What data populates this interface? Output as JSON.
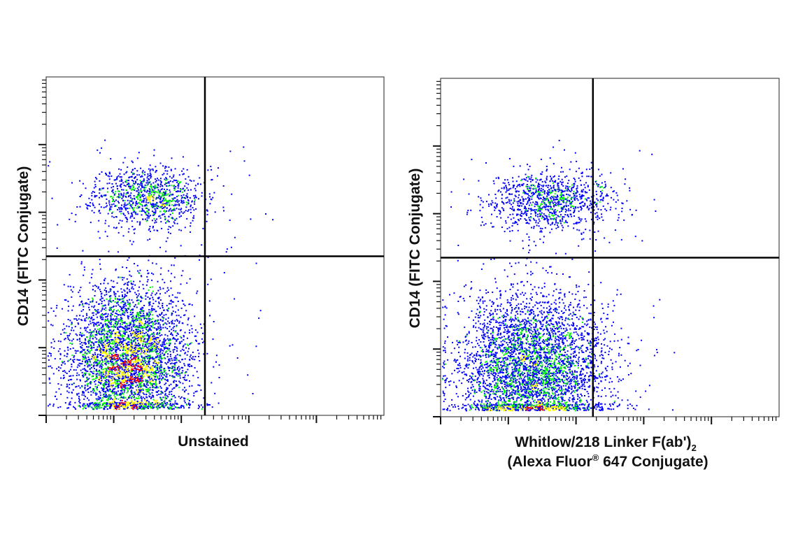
{
  "chart_data": [
    {
      "type": "scatter",
      "subtype": "flow-cytometry-density-dot-plot",
      "y_label": "CD14 (FITC Conjugate)",
      "x_label": "Unstained",
      "axes": {
        "x_scale": "log",
        "y_scale": "log",
        "x_decades": 5,
        "y_decades": 5,
        "tick_labels": "none",
        "grid": false
      },
      "quadrant_gates": {
        "x": 0.47,
        "y": 0.53
      },
      "density_colors": [
        "#0000ff",
        "#00ff00",
        "#ffff00",
        "#ff0000"
      ],
      "populations": [
        {
          "name": "CD14 high",
          "x_center": 1.5,
          "y_center": 3.25,
          "x_spread": 0.4,
          "y_spread": 0.22,
          "share": 0.2
        },
        {
          "name": "CD14 low",
          "x_center": 1.2,
          "y_center": 0.85,
          "x_spread": 0.45,
          "y_spread": 0.55,
          "share": 0.8
        }
      ]
    },
    {
      "type": "scatter",
      "subtype": "flow-cytometry-density-dot-plot",
      "y_label": "CD14 (FITC Conjugate)",
      "x_label_line1": "Whitlow/218 Linker F(ab')",
      "x_label_sub": "2",
      "x_label_line2_a": "(Alexa Fluor",
      "x_label_line2_sup": "®",
      "x_label_line2_b": " 647 Conjugate)",
      "axes": {
        "x_scale": "log",
        "y_scale": "log",
        "x_decades": 5,
        "y_decades": 5,
        "tick_labels": "none",
        "grid": false
      },
      "quadrant_gates": {
        "x": 0.45,
        "y": 0.53
      },
      "density_colors": [
        "#0000ff",
        "#00ff00",
        "#ffff00",
        "#ff0000"
      ],
      "populations": [
        {
          "name": "CD14 high",
          "x_center": 1.6,
          "y_center": 3.2,
          "x_spread": 0.45,
          "y_spread": 0.22,
          "share": 0.2
        },
        {
          "name": "CD14 low",
          "x_center": 1.35,
          "y_center": 0.75,
          "x_spread": 0.55,
          "y_spread": 0.55,
          "share": 0.8
        }
      ]
    }
  ]
}
